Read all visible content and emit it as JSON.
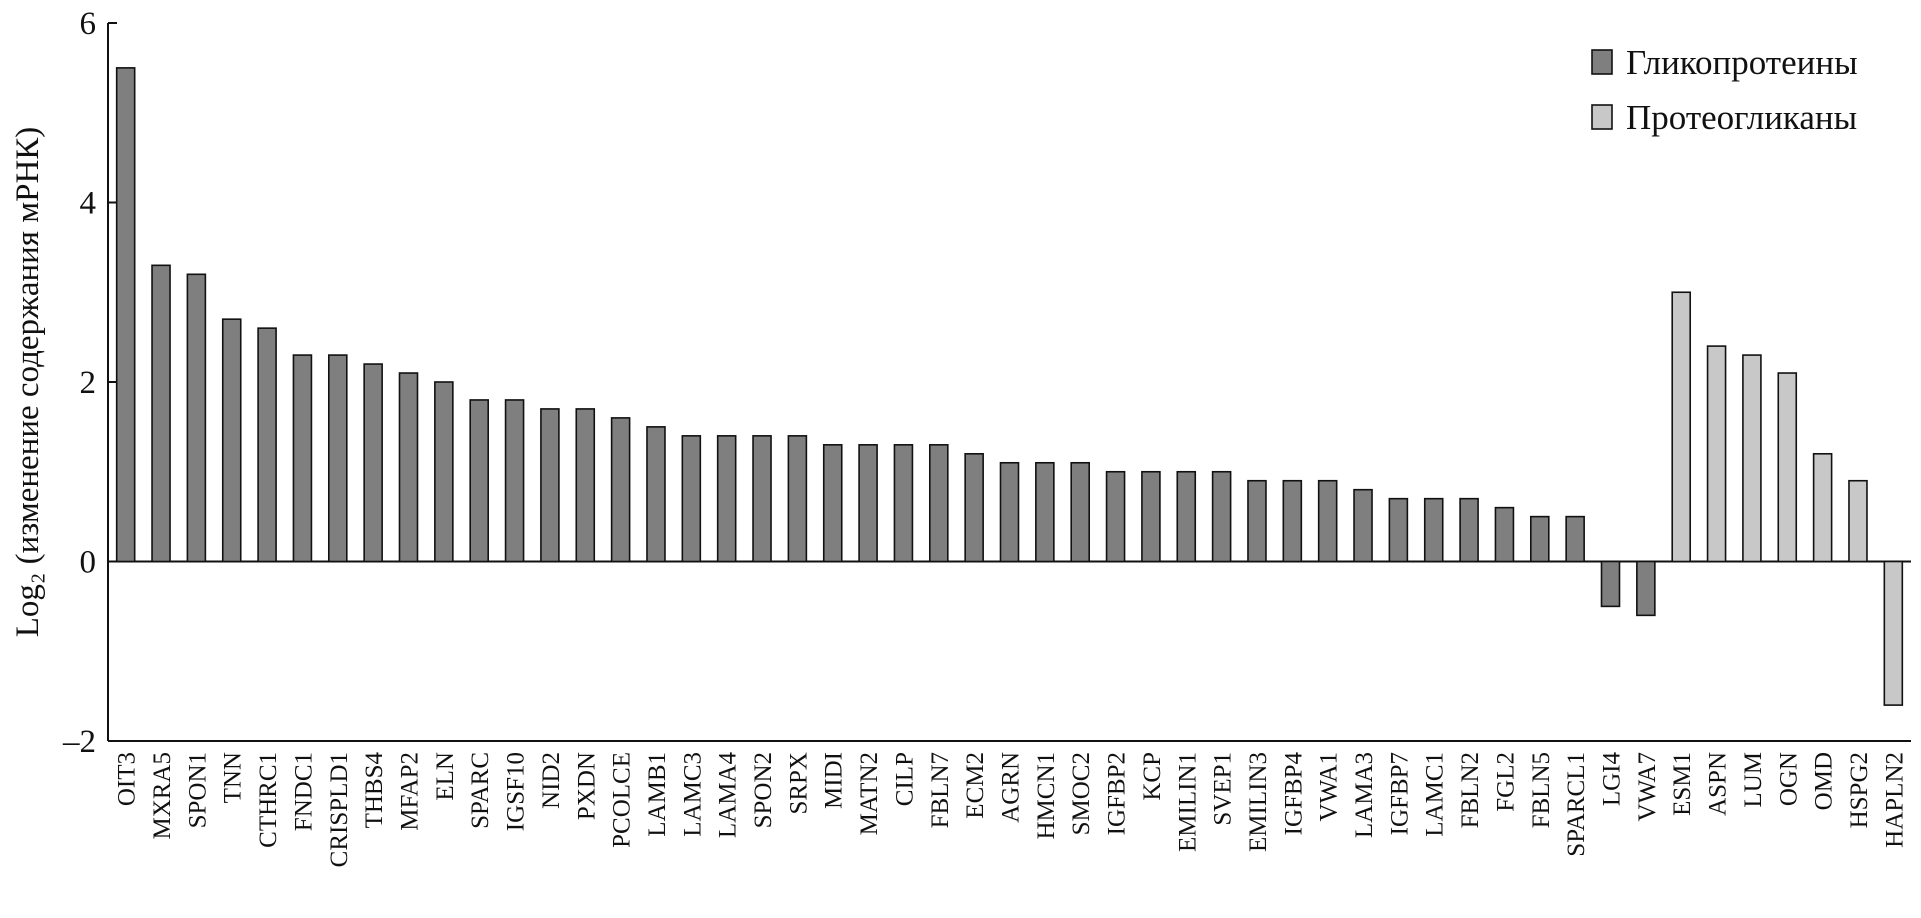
{
  "chart_data": {
    "type": "bar",
    "ylabel": "Log₂ (изменение содержания мРНК)",
    "categories": [
      "OIT3",
      "MXRA5",
      "SPON1",
      "TNN",
      "CTHRC1",
      "FNDC1",
      "CRISPLD1",
      "THBS4",
      "MFAP2",
      "ELN",
      "SPARC",
      "IGSF10",
      "NID2",
      "PXDN",
      "PCOLCE",
      "LAMB1",
      "LAMC3",
      "LAMA4",
      "SPON2",
      "SRPX",
      "MIDI",
      "MATN2",
      "CILP",
      "FBLN7",
      "ECM2",
      "AGRN",
      "HMCN1",
      "SMOC2",
      "IGFBP2",
      "KCP",
      "EMILIN1",
      "SVEP1",
      "EMILIN3",
      "IGFBP4",
      "VWA1",
      "LAMA3",
      "IGFBP7",
      "LAMC1",
      "FBLN2",
      "FGL2",
      "FBLN5",
      "SPARCL1",
      "LGI4",
      "VWA7",
      "ESM1",
      "ASPN",
      "LUM",
      "OGN",
      "OMD",
      "HSPG2",
      "HAPLN2"
    ],
    "series": [
      {
        "name": "Гликопротеины",
        "color": "#7f7f7f",
        "values": [
          5.5,
          3.3,
          3.2,
          2.7,
          2.6,
          2.3,
          2.3,
          2.2,
          2.1,
          2.0,
          1.8,
          1.8,
          1.7,
          1.7,
          1.6,
          1.5,
          1.4,
          1.4,
          1.4,
          1.4,
          1.3,
          1.3,
          1.3,
          1.3,
          1.2,
          1.1,
          1.1,
          1.1,
          1.0,
          1.0,
          1.0,
          1.0,
          0.9,
          0.9,
          0.9,
          0.8,
          0.7,
          0.7,
          0.7,
          0.6,
          0.5,
          0.5,
          -0.5,
          -0.6,
          null,
          null,
          null,
          null,
          null,
          null,
          null
        ]
      },
      {
        "name": "Протеогликаны",
        "color": "#c8c8c8",
        "values": [
          null,
          null,
          null,
          null,
          null,
          null,
          null,
          null,
          null,
          null,
          null,
          null,
          null,
          null,
          null,
          null,
          null,
          null,
          null,
          null,
          null,
          null,
          null,
          null,
          null,
          null,
          null,
          null,
          null,
          null,
          null,
          null,
          null,
          null,
          null,
          null,
          null,
          null,
          null,
          null,
          null,
          null,
          null,
          null,
          3.0,
          2.4,
          2.3,
          2.1,
          1.2,
          0.9,
          -1.6
        ]
      }
    ],
    "ylim": [
      -2,
      6
    ],
    "yticks": [
      {
        "value": -2,
        "label": "–2"
      },
      0,
      2,
      4,
      6
    ],
    "legend": "upper right"
  }
}
